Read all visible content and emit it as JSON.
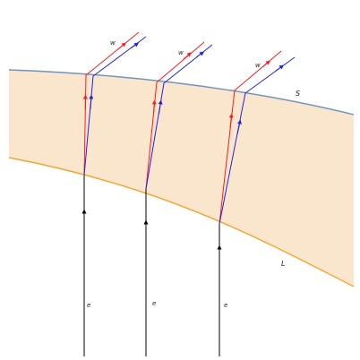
{
  "colors": {
    "background": "#ffffff",
    "band_fill": "#fae6cc",
    "upper_boundary": "#6f93c3",
    "lower_boundary": "#f0a531",
    "incoming_ray": "#000000",
    "red_ray": "#ff1a1a",
    "blue_ray": "#2020e0",
    "label": "#222222"
  },
  "labels": {
    "upper_boundary": "S",
    "lower_boundary": "L",
    "incoming": "e",
    "outgoing": "w"
  }
}
